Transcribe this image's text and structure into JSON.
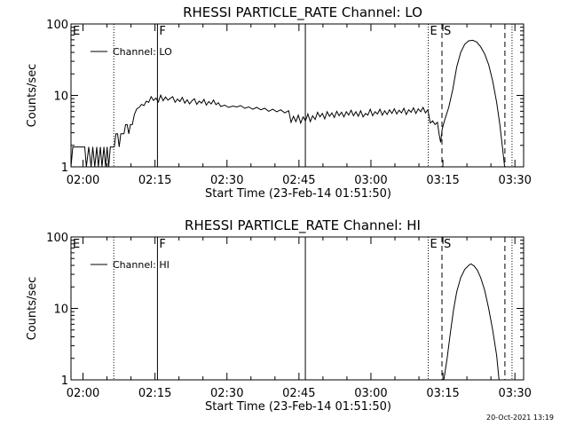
{
  "figure": {
    "timestamp": "20-Oct-2021 13:19"
  },
  "chart_data": [
    {
      "type": "line",
      "title": "RHESSI PARTICLE_RATE Channel: LO",
      "xlabel": "Start Time (23-Feb-14 01:51:50)",
      "ylabel": "Counts/sec",
      "x_tick_labels": [
        "02:00",
        "02:15",
        "02:30",
        "02:45",
        "03:00",
        "03:15",
        "03:30"
      ],
      "x_ticks_min": [
        128,
        1028,
        1928,
        2828,
        3728,
        4628,
        5528
      ],
      "xlim_min": [
        -22,
        5637
      ],
      "y_scale": "log",
      "ylim": [
        1,
        100
      ],
      "y_tick_labels": [
        "1",
        "10",
        "100"
      ],
      "legend": {
        "label": "Channel: LO",
        "position": "top-left"
      },
      "markers": [
        {
          "label": "E",
          "t_min": -22,
          "style": "dotted"
        },
        {
          "label": "",
          "t_min": 513,
          "style": "dotted"
        },
        {
          "label": "F",
          "t_min": 1059,
          "style": "solid"
        },
        {
          "label": "",
          "t_min": 2908,
          "style": "solid"
        },
        {
          "label": "E",
          "t_min": 4444,
          "style": "dotted"
        },
        {
          "label": "S",
          "t_min": 4616,
          "style": "dashed"
        },
        {
          "label": "",
          "t_min": 5403,
          "style": "dashed"
        },
        {
          "label": "",
          "t_min": 5492,
          "style": "dotted"
        }
      ],
      "series": [
        {
          "name": "Channel: LO",
          "points": [
            [
              -22,
              1.0
            ],
            [
              0,
              1.9
            ],
            [
              150,
              1.9
            ],
            [
              170,
              1.0
            ],
            [
              200,
              1.9
            ],
            [
              230,
              1.0
            ],
            [
              250,
              1.9
            ],
            [
              275,
              1.0
            ],
            [
              300,
              1.9
            ],
            [
              320,
              1.0
            ],
            [
              345,
              1.9
            ],
            [
              365,
              1.0
            ],
            [
              390,
              1.9
            ],
            [
              410,
              1.0
            ],
            [
              430,
              1.9
            ],
            [
              450,
              1.0
            ],
            [
              470,
              1.9
            ],
            [
              500,
              1.9
            ],
            [
              520,
              1.9
            ],
            [
              540,
              2.9
            ],
            [
              560,
              2.9
            ],
            [
              580,
              1.9
            ],
            [
              600,
              2.9
            ],
            [
              640,
              2.9
            ],
            [
              660,
              3.9
            ],
            [
              680,
              3.9
            ],
            [
              700,
              2.9
            ],
            [
              720,
              3.9
            ],
            [
              745,
              3.9
            ],
            [
              770,
              5.4
            ],
            [
              800,
              6.5
            ],
            [
              830,
              6.8
            ],
            [
              860,
              7.5
            ],
            [
              890,
              7.2
            ],
            [
              920,
              8.3
            ],
            [
              950,
              8.0
            ],
            [
              980,
              9.6
            ],
            [
              1010,
              8.5
            ],
            [
              1040,
              9.2
            ],
            [
              1070,
              8.1
            ],
            [
              1100,
              10.1
            ],
            [
              1130,
              8.4
            ],
            [
              1160,
              9.5
            ],
            [
              1190,
              8.6
            ],
            [
              1220,
              9.1
            ],
            [
              1250,
              9.6
            ],
            [
              1280,
              8.0
            ],
            [
              1310,
              8.9
            ],
            [
              1340,
              8.2
            ],
            [
              1370,
              9.4
            ],
            [
              1400,
              7.8
            ],
            [
              1430,
              8.7
            ],
            [
              1460,
              7.6
            ],
            [
              1490,
              8.4
            ],
            [
              1520,
              9.0
            ],
            [
              1550,
              7.5
            ],
            [
              1580,
              8.3
            ],
            [
              1610,
              7.8
            ],
            [
              1640,
              8.8
            ],
            [
              1670,
              7.3
            ],
            [
              1700,
              8.2
            ],
            [
              1730,
              7.6
            ],
            [
              1760,
              8.6
            ],
            [
              1790,
              7.4
            ],
            [
              1820,
              7.9
            ],
            [
              1850,
              7.0
            ],
            [
              1900,
              7.3
            ],
            [
              1950,
              6.8
            ],
            [
              2000,
              7.1
            ],
            [
              2050,
              6.9
            ],
            [
              2100,
              7.2
            ],
            [
              2150,
              6.6
            ],
            [
              2200,
              6.9
            ],
            [
              2250,
              6.4
            ],
            [
              2300,
              6.8
            ],
            [
              2350,
              6.3
            ],
            [
              2400,
              6.6
            ],
            [
              2450,
              6.0
            ],
            [
              2500,
              6.4
            ],
            [
              2550,
              5.9
            ],
            [
              2600,
              6.3
            ],
            [
              2650,
              5.7
            ],
            [
              2700,
              6.1
            ],
            [
              2730,
              4.2
            ],
            [
              2760,
              5.1
            ],
            [
              2790,
              4.3
            ],
            [
              2820,
              5.3
            ],
            [
              2850,
              4.1
            ],
            [
              2880,
              5.0
            ],
            [
              2910,
              4.4
            ],
            [
              2940,
              5.5
            ],
            [
              2970,
              4.3
            ],
            [
              3000,
              5.2
            ],
            [
              3030,
              4.6
            ],
            [
              3060,
              5.8
            ],
            [
              3090,
              5.0
            ],
            [
              3120,
              5.6
            ],
            [
              3150,
              4.7
            ],
            [
              3180,
              5.9
            ],
            [
              3210,
              5.1
            ],
            [
              3240,
              5.7
            ],
            [
              3270,
              4.9
            ],
            [
              3300,
              6.0
            ],
            [
              3330,
              5.2
            ],
            [
              3360,
              5.8
            ],
            [
              3390,
              5.0
            ],
            [
              3420,
              5.9
            ],
            [
              3450,
              5.3
            ],
            [
              3480,
              6.2
            ],
            [
              3510,
              5.2
            ],
            [
              3540,
              5.9
            ],
            [
              3570,
              5.1
            ],
            [
              3600,
              6.1
            ],
            [
              3630,
              5.0
            ],
            [
              3660,
              5.6
            ],
            [
              3690,
              5.3
            ],
            [
              3720,
              6.4
            ],
            [
              3750,
              5.2
            ],
            [
              3780,
              5.9
            ],
            [
              3810,
              5.5
            ],
            [
              3840,
              6.4
            ],
            [
              3870,
              5.3
            ],
            [
              3900,
              6.1
            ],
            [
              3930,
              5.4
            ],
            [
              3960,
              6.3
            ],
            [
              3990,
              5.6
            ],
            [
              4020,
              6.5
            ],
            [
              4050,
              5.5
            ],
            [
              4080,
              6.2
            ],
            [
              4110,
              5.7
            ],
            [
              4140,
              6.6
            ],
            [
              4170,
              5.4
            ],
            [
              4200,
              6.3
            ],
            [
              4230,
              5.8
            ],
            [
              4260,
              6.7
            ],
            [
              4290,
              5.6
            ],
            [
              4320,
              6.5
            ],
            [
              4350,
              5.9
            ],
            [
              4380,
              6.8
            ],
            [
              4410,
              5.7
            ],
            [
              4440,
              6.3
            ],
            [
              4470,
              4.1
            ],
            [
              4500,
              4.4
            ],
            [
              4530,
              3.9
            ],
            [
              4560,
              4.2
            ],
            [
              4580,
              2.9
            ],
            [
              4600,
              2.2
            ],
            [
              4620,
              3.4
            ],
            [
              4650,
              4.5
            ],
            [
              4700,
              6.8
            ],
            [
              4750,
              12.0
            ],
            [
              4800,
              25.0
            ],
            [
              4850,
              40.0
            ],
            [
              4900,
              52.0
            ],
            [
              4950,
              58.0
            ],
            [
              5000,
              59.0
            ],
            [
              5050,
              56.0
            ],
            [
              5100,
              48.0
            ],
            [
              5150,
              38.0
            ],
            [
              5200,
              27.0
            ],
            [
              5250,
              16.0
            ],
            [
              5300,
              8.0
            ],
            [
              5340,
              3.9
            ],
            [
              5370,
              2.0
            ],
            [
              5400,
              1.0
            ]
          ]
        }
      ]
    },
    {
      "type": "line",
      "title": "RHESSI PARTICLE_RATE Channel: HI",
      "xlabel": "Start Time (23-Feb-14 01:51:50)",
      "ylabel": "Counts/sec",
      "x_tick_labels": [
        "02:00",
        "02:15",
        "02:30",
        "02:45",
        "03:00",
        "03:15",
        "03:30"
      ],
      "x_ticks_min": [
        128,
        1028,
        1928,
        2828,
        3728,
        4628,
        5528
      ],
      "xlim_min": [
        -22,
        5637
      ],
      "y_scale": "log",
      "ylim": [
        1,
        100
      ],
      "y_tick_labels": [
        "1",
        "10",
        "100"
      ],
      "legend": {
        "label": "Channel: HI",
        "position": "top-left"
      },
      "markers": [
        {
          "label": "E",
          "t_min": -22,
          "style": "dotted"
        },
        {
          "label": "",
          "t_min": 513,
          "style": "dotted"
        },
        {
          "label": "F",
          "t_min": 1059,
          "style": "solid"
        },
        {
          "label": "",
          "t_min": 2908,
          "style": "solid"
        },
        {
          "label": "E",
          "t_min": 4444,
          "style": "dotted"
        },
        {
          "label": "S",
          "t_min": 4616,
          "style": "dashed"
        },
        {
          "label": "",
          "t_min": 5403,
          "style": "dashed"
        },
        {
          "label": "",
          "t_min": 5492,
          "style": "dotted"
        }
      ],
      "series": [
        {
          "name": "Channel: HI",
          "points": [
            [
              4640,
              1.0
            ],
            [
              4680,
              2.0
            ],
            [
              4720,
              4.5
            ],
            [
              4760,
              9.5
            ],
            [
              4800,
              17.0
            ],
            [
              4850,
              27.0
            ],
            [
              4900,
              35.0
            ],
            [
              4950,
              40.0
            ],
            [
              4980,
              42.0
            ],
            [
              5020,
              39.0
            ],
            [
              5060,
              34.0
            ],
            [
              5100,
              27.0
            ],
            [
              5150,
              18.0
            ],
            [
              5200,
              10.0
            ],
            [
              5250,
              5.0
            ],
            [
              5300,
              2.2
            ],
            [
              5330,
              1.0
            ]
          ]
        }
      ]
    }
  ]
}
